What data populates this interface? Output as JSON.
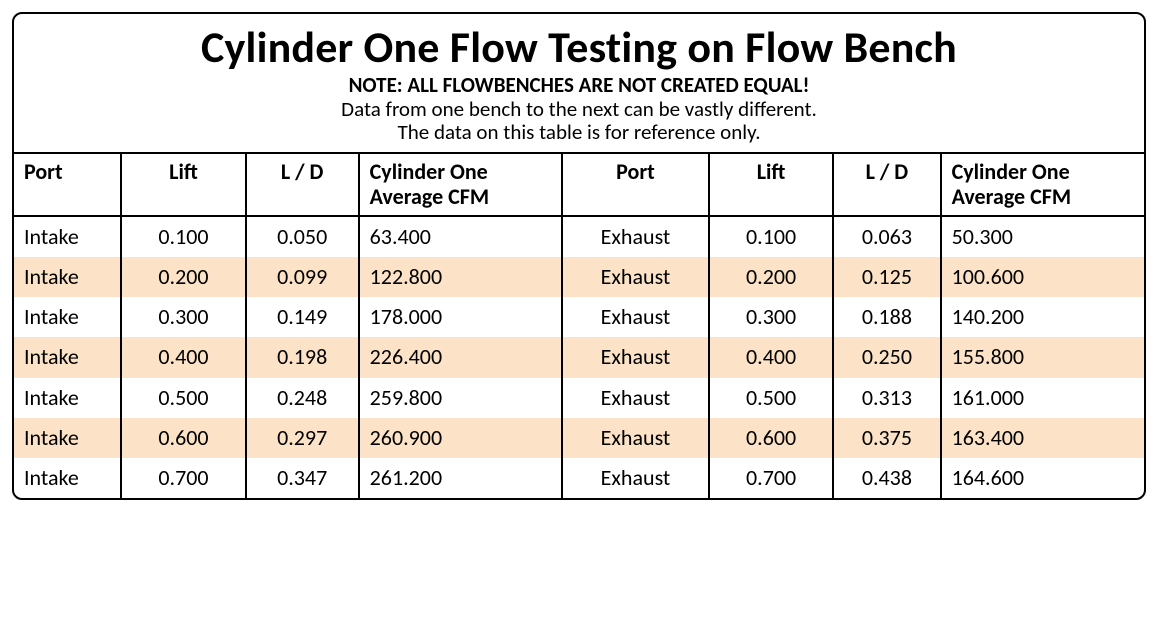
{
  "colors": {
    "row_alt_bg": "#fce3c8",
    "border": "#000000",
    "text": "#000000",
    "background": "#ffffff"
  },
  "header": {
    "title": "Cylinder One Flow Testing on Flow Bench",
    "note_bold": "NOTE: ALL FLOWBENCHES ARE NOT CREATED EQUAL!",
    "note_line1": "Data from one bench to the next can be vastly different.",
    "note_line2": "The data on this table is for reference only."
  },
  "table": {
    "columns": [
      {
        "label": "Port",
        "align": "left"
      },
      {
        "label": "Lift",
        "align": "center"
      },
      {
        "label": "L / D",
        "align": "center"
      },
      {
        "label": "Cylinder One Average CFM",
        "align": "left"
      },
      {
        "label": "Port",
        "align": "center"
      },
      {
        "label": "Lift",
        "align": "center"
      },
      {
        "label": "L / D",
        "align": "center"
      },
      {
        "label": "Cylinder One Average CFM",
        "align": "left"
      }
    ],
    "rows": [
      {
        "alt": false,
        "cells": [
          "Intake",
          "0.100",
          "0.050",
          "63.400",
          "Exhaust",
          "0.100",
          "0.063",
          "50.300"
        ]
      },
      {
        "alt": true,
        "cells": [
          "Intake",
          "0.200",
          "0.099",
          "122.800",
          "Exhaust",
          "0.200",
          "0.125",
          "100.600"
        ]
      },
      {
        "alt": false,
        "cells": [
          "Intake",
          "0.300",
          "0.149",
          "178.000",
          "Exhaust",
          "0.300",
          "0.188",
          "140.200"
        ]
      },
      {
        "alt": true,
        "cells": [
          "Intake",
          "0.400",
          "0.198",
          "226.400",
          "Exhaust",
          "0.400",
          "0.250",
          "155.800"
        ]
      },
      {
        "alt": false,
        "cells": [
          "Intake",
          "0.500",
          "0.248",
          "259.800",
          "Exhaust",
          "0.500",
          "0.313",
          "161.000"
        ]
      },
      {
        "alt": true,
        "cells": [
          "Intake",
          "0.600",
          "0.297",
          "260.900",
          "Exhaust",
          "0.600",
          "0.375",
          "163.400"
        ]
      },
      {
        "alt": false,
        "cells": [
          "Intake",
          "0.700",
          "0.347",
          "261.200",
          "Exhaust",
          "0.700",
          "0.438",
          "164.600"
        ]
      }
    ]
  }
}
